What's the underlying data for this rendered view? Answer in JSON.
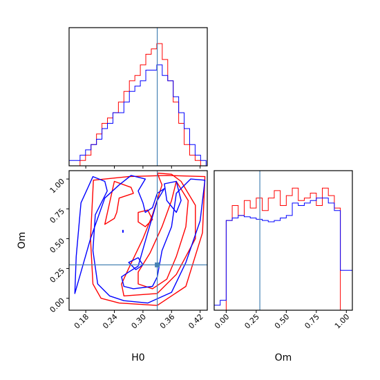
{
  "chart_data": {
    "type": "corner",
    "parameters": [
      "H0",
      "Om"
    ],
    "truth": {
      "H0": 0.33,
      "Om": 0.28
    },
    "truth_color": "#4682b4",
    "series": [
      {
        "name": "",
        "color": "#ff0000"
      },
      {
        "name": "",
        "color": "#0000ff"
      }
    ],
    "panels": [
      {
        "id": "hist-h0",
        "type": "histogram",
        "xlim": [
          0.145,
          0.435
        ],
        "bin_edges": [
          0.145,
          0.1565,
          0.168,
          0.1795,
          0.191,
          0.2025,
          0.214,
          0.2255,
          0.237,
          0.2485,
          0.26,
          0.2715,
          0.283,
          0.2945,
          0.306,
          0.3175,
          0.329,
          0.3405,
          0.352,
          0.3635,
          0.375,
          0.3865,
          0.398,
          0.4095,
          0.421,
          0.4325
        ],
        "series_counts": [
          [
            0,
            0,
            1,
            2,
            4,
            6,
            8,
            9,
            10,
            12,
            14,
            16,
            17,
            19,
            21,
            22,
            23,
            20,
            16,
            12,
            8,
            4,
            2,
            1,
            0
          ],
          [
            1,
            1,
            2,
            3,
            4,
            5,
            7,
            8,
            10,
            10,
            12,
            14,
            15,
            16,
            18,
            18,
            19,
            17,
            16,
            13,
            10,
            7,
            4,
            2,
            1
          ]
        ],
        "ylim": [
          0,
          26
        ],
        "xticks": [
          0.18,
          0.24,
          0.3,
          0.36,
          0.42
        ],
        "show_tick_labels": false
      },
      {
        "id": "hist-om",
        "type": "histogram",
        "xlim": [
          -0.1,
          1.05
        ],
        "bin_edges": [
          -0.1,
          -0.05,
          0,
          0.05,
          0.1,
          0.15,
          0.2,
          0.25,
          0.3,
          0.35,
          0.4,
          0.45,
          0.5,
          0.55,
          0.6,
          0.65,
          0.7,
          0.75,
          0.8,
          0.85,
          0.9,
          0.95,
          1.0,
          1.05
        ],
        "series_counts": [
          [
            0,
            0,
            3.6,
            4.2,
            3.8,
            4.4,
            4.1,
            4.5,
            4.0,
            4.5,
            4.8,
            4.2,
            4.6,
            4.9,
            4.4,
            4.5,
            4.7,
            4.2,
            4.9,
            4.6,
            4.1,
            0,
            0
          ],
          [
            0.2,
            0.4,
            3.6,
            3.7,
            3.8,
            3.75,
            3.7,
            3.65,
            3.6,
            3.55,
            3.6,
            3.7,
            3.8,
            4.3,
            4.2,
            4.3,
            4.4,
            4.5,
            4.5,
            4.3,
            4.0,
            1.6,
            1.6
          ]
        ],
        "ylim": [
          0,
          5.6
        ],
        "xticks": [
          0.0,
          0.25,
          0.5,
          0.75,
          1.0
        ],
        "xtick_labels": [
          "0.00",
          "0.25",
          "0.50",
          "0.75",
          "1.00"
        ],
        "xlabel": "Om"
      },
      {
        "id": "contour-h0-om",
        "type": "contour",
        "xlim": [
          0.145,
          0.435
        ],
        "ylim": [
          -0.1,
          1.07
        ],
        "xticks": [
          0.18,
          0.24,
          0.3,
          0.36,
          0.42
        ],
        "xtick_labels": [
          "0.18",
          "0.24",
          "0.30",
          "0.36",
          "0.42"
        ],
        "yticks": [
          0.0,
          0.25,
          0.5,
          0.75,
          1.0
        ],
        "ytick_labels": [
          "0.00",
          "0.25",
          "0.50",
          "0.75",
          "1.00"
        ],
        "xlabel": "H0",
        "ylabel": "Om",
        "series_contours": [
          [
            [
              [
                0.196,
                0.99
              ],
              [
                0.19,
                0.5
              ],
              [
                0.195,
                0.12
              ],
              [
                0.212,
                0.0
              ],
              [
                0.25,
                -0.04
              ],
              [
                0.33,
                -0.06
              ],
              [
                0.39,
                0.1
              ],
              [
                0.425,
                0.55
              ],
              [
                0.43,
                1.02
              ],
              [
                0.35,
                1.03
              ],
              [
                0.27,
                1.02
              ],
              [
                0.196,
                0.99
              ]
            ],
            [
              [
                0.22,
                0.62
              ],
              [
                0.23,
                0.8
              ],
              [
                0.24,
                0.98
              ],
              [
                0.275,
                0.93
              ],
              [
                0.28,
                0.88
              ],
              [
                0.25,
                0.84
              ],
              [
                0.245,
                0.72
              ],
              [
                0.24,
                0.67
              ],
              [
                0.22,
                0.62
              ]
            ],
            [
              [
                0.33,
                1.05
              ],
              [
                0.36,
                1.04
              ],
              [
                0.38,
                0.98
              ],
              [
                0.41,
                0.78
              ],
              [
                0.41,
                0.5
              ],
              [
                0.37,
                0.2
              ],
              [
                0.33,
                0.04
              ],
              [
                0.26,
                0.02
              ],
              [
                0.255,
                0.12
              ],
              [
                0.27,
                0.25
              ],
              [
                0.3,
                0.5
              ],
              [
                0.32,
                0.7
              ],
              [
                0.34,
                0.95
              ],
              [
                0.33,
                1.05
              ]
            ],
            [
              [
                0.37,
                0.98
              ],
              [
                0.395,
                0.82
              ],
              [
                0.39,
                0.6
              ],
              [
                0.37,
                0.35
              ],
              [
                0.35,
                0.16
              ],
              [
                0.32,
                0.08
              ],
              [
                0.29,
                0.12
              ],
              [
                0.29,
                0.22
              ],
              [
                0.315,
                0.38
              ],
              [
                0.34,
                0.6
              ],
              [
                0.36,
                0.82
              ],
              [
                0.37,
                0.98
              ]
            ],
            [
              [
                0.29,
                0.72
              ],
              [
                0.31,
                0.74
              ],
              [
                0.32,
                0.66
              ],
              [
                0.305,
                0.6
              ],
              [
                0.29,
                0.64
              ],
              [
                0.29,
                0.72
              ]
            ]
          ],
          [
            [
              [
                0.157,
                0.04
              ],
              [
                0.16,
                0.35
              ],
              [
                0.17,
                0.8
              ],
              [
                0.195,
                1.02
              ],
              [
                0.22,
                0.98
              ],
              [
                0.225,
                0.9
              ],
              [
                0.2,
                0.7
              ],
              [
                0.195,
                0.4
              ],
              [
                0.205,
                0.12
              ],
              [
                0.23,
                0.02
              ],
              [
                0.26,
                -0.02
              ],
              [
                0.31,
                -0.04
              ],
              [
                0.36,
                0.05
              ],
              [
                0.39,
                0.3
              ],
              [
                0.42,
                0.65
              ],
              [
                0.43,
                0.99
              ],
              [
                0.4,
                1.0
              ],
              [
                0.37,
                0.88
              ],
              [
                0.36,
                0.6
              ],
              [
                0.34,
                0.4
              ],
              [
                0.33,
                0.18
              ],
              [
                0.32,
                0.1
              ],
              [
                0.28,
                0.08
              ],
              [
                0.26,
                0.1
              ],
              [
                0.255,
                0.18
              ],
              [
                0.27,
                0.22
              ],
              [
                0.29,
                0.27
              ],
              [
                0.31,
                0.55
              ],
              [
                0.33,
                0.82
              ],
              [
                0.345,
                0.92
              ],
              [
                0.33,
                0.88
              ],
              [
                0.32,
                0.76
              ],
              [
                0.305,
                0.72
              ],
              [
                0.3,
                0.8
              ],
              [
                0.29,
                0.9
              ],
              [
                0.305,
                1.0
              ],
              [
                0.275,
                1.03
              ],
              [
                0.25,
                0.95
              ],
              [
                0.22,
                0.84
              ],
              [
                0.19,
                0.5
              ],
              [
                0.157,
                0.04
              ]
            ],
            [
              [
                0.345,
                0.96
              ],
              [
                0.37,
                0.98
              ],
              [
                0.38,
                0.82
              ],
              [
                0.37,
                0.72
              ],
              [
                0.35,
                0.82
              ],
              [
                0.345,
                0.96
              ]
            ],
            [
              [
                0.27,
                0.3
              ],
              [
                0.29,
                0.34
              ],
              [
                0.3,
                0.28
              ],
              [
                0.285,
                0.24
              ],
              [
                0.27,
                0.3
              ]
            ]
          ]
        ]
      }
    ]
  }
}
